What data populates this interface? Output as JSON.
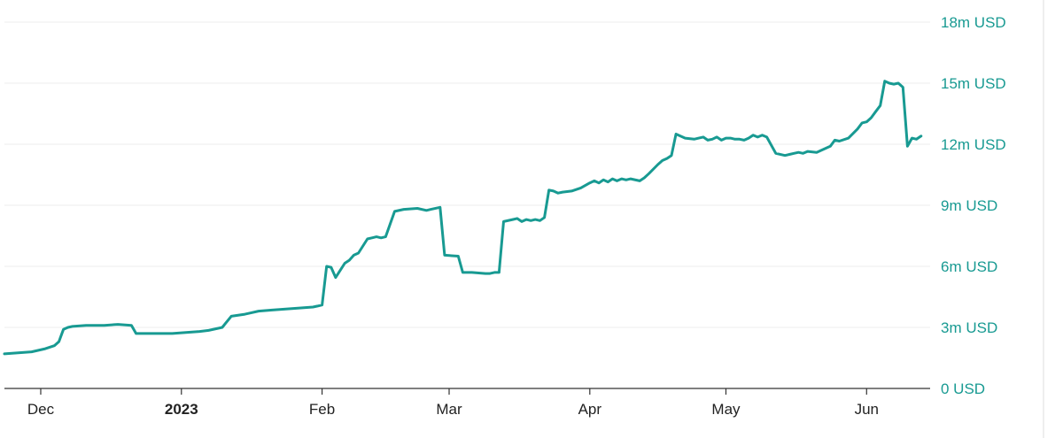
{
  "colors": {
    "line": "#189a92",
    "y_label": "#189a92"
  },
  "chart_data": {
    "type": "line",
    "title": "",
    "xlabel": "",
    "ylabel": "",
    "grid": true,
    "ylim": [
      0,
      18000000
    ],
    "xlim": [
      "2022-11-23",
      "2023-06-15"
    ],
    "y_ticks": [
      {
        "value": 0,
        "label": "0 USD"
      },
      {
        "value": 3000000,
        "label": "3m USD"
      },
      {
        "value": 6000000,
        "label": "6m USD"
      },
      {
        "value": 9000000,
        "label": "9m USD"
      },
      {
        "value": 12000000,
        "label": "12m USD"
      },
      {
        "value": 15000000,
        "label": "15m USD"
      },
      {
        "value": 18000000,
        "label": "18m USD"
      }
    ],
    "x_ticks": [
      {
        "date": "2022-12-01",
        "label": "Dec",
        "major": false
      },
      {
        "date": "2023-01-01",
        "label": "2023",
        "major": true
      },
      {
        "date": "2023-02-01",
        "label": "Feb",
        "major": false
      },
      {
        "date": "2023-03-01",
        "label": "Mar",
        "major": false
      },
      {
        "date": "2023-04-01",
        "label": "Apr",
        "major": false
      },
      {
        "date": "2023-05-01",
        "label": "May",
        "major": false
      },
      {
        "date": "2023-06-01",
        "label": "Jun",
        "major": false
      }
    ],
    "series": [
      {
        "x": [
          "2022-11-23",
          "2022-11-26",
          "2022-11-29",
          "2022-12-02",
          "2022-12-04",
          "2022-12-05",
          "2022-12-06",
          "2022-12-07",
          "2022-12-08",
          "2022-12-11",
          "2022-12-15",
          "2022-12-18",
          "2022-12-21",
          "2022-12-22",
          "2022-12-23",
          "2022-12-26",
          "2022-12-30",
          "2023-01-02",
          "2023-01-05",
          "2023-01-07",
          "2023-01-09",
          "2023-01-10",
          "2023-01-12",
          "2023-01-15",
          "2023-01-16",
          "2023-01-18",
          "2023-01-21",
          "2023-01-24",
          "2023-01-27",
          "2023-01-30",
          "2023-01-31",
          "2023-02-01",
          "2023-02-02",
          "2023-02-03",
          "2023-02-04",
          "2023-02-06",
          "2023-02-07",
          "2023-02-08",
          "2023-02-09",
          "2023-02-11",
          "2023-02-12",
          "2023-02-13",
          "2023-02-14",
          "2023-02-15",
          "2023-02-17",
          "2023-02-19",
          "2023-02-22",
          "2023-02-24",
          "2023-02-25",
          "2023-02-27",
          "2023-02-28",
          "2023-03-03",
          "2023-03-04",
          "2023-03-06",
          "2023-03-09",
          "2023-03-10",
          "2023-03-11",
          "2023-03-12",
          "2023-03-13",
          "2023-03-15",
          "2023-03-16",
          "2023-03-17",
          "2023-03-18",
          "2023-03-19",
          "2023-03-20",
          "2023-03-21",
          "2023-03-22",
          "2023-03-23",
          "2023-03-24",
          "2023-03-25",
          "2023-03-26",
          "2023-03-28",
          "2023-03-30",
          "2023-04-01",
          "2023-04-02",
          "2023-04-03",
          "2023-04-04",
          "2023-04-05",
          "2023-04-06",
          "2023-04-07",
          "2023-04-08",
          "2023-04-09",
          "2023-04-10",
          "2023-04-12",
          "2023-04-13",
          "2023-04-14",
          "2023-04-16",
          "2023-04-17",
          "2023-04-18",
          "2023-04-19",
          "2023-04-20",
          "2023-04-22",
          "2023-04-24",
          "2023-04-25",
          "2023-04-26",
          "2023-04-27",
          "2023-04-28",
          "2023-04-29",
          "2023-04-30",
          "2023-05-01",
          "2023-05-02",
          "2023-05-03",
          "2023-05-04",
          "2023-05-05",
          "2023-05-06",
          "2023-05-07",
          "2023-05-08",
          "2023-05-09",
          "2023-05-10",
          "2023-05-12",
          "2023-05-14",
          "2023-05-15",
          "2023-05-16",
          "2023-05-17",
          "2023-05-18",
          "2023-05-19",
          "2023-05-21",
          "2023-05-22",
          "2023-05-24",
          "2023-05-25",
          "2023-05-26",
          "2023-05-28",
          "2023-05-30",
          "2023-05-31",
          "2023-06-01",
          "2023-06-02",
          "2023-06-03",
          "2023-06-04",
          "2023-06-05",
          "2023-06-06",
          "2023-06-07",
          "2023-06-08",
          "2023-06-09",
          "2023-06-10",
          "2023-06-11",
          "2023-06-12",
          "2023-06-13"
        ],
        "y": [
          1700000,
          1750000,
          1800000,
          1950000,
          2100000,
          2300000,
          2900000,
          3000000,
          3050000,
          3100000,
          3100000,
          3150000,
          3100000,
          2700000,
          2700000,
          2700000,
          2700000,
          2750000,
          2800000,
          2850000,
          2950000,
          3000000,
          3550000,
          3650000,
          3700000,
          3800000,
          3850000,
          3900000,
          3950000,
          4000000,
          4050000,
          4100000,
          6000000,
          5950000,
          5450000,
          6150000,
          6300000,
          6550000,
          6650000,
          7350000,
          7400000,
          7450000,
          7400000,
          7450000,
          8700000,
          8800000,
          8850000,
          8750000,
          8800000,
          8900000,
          6550000,
          6500000,
          5700000,
          5700000,
          5650000,
          5650000,
          5700000,
          5700000,
          8200000,
          8300000,
          8350000,
          8200000,
          8300000,
          8250000,
          8300000,
          8250000,
          8400000,
          9750000,
          9700000,
          9600000,
          9650000,
          9700000,
          9850000,
          10100000,
          10200000,
          10100000,
          10250000,
          10150000,
          10300000,
          10200000,
          10300000,
          10250000,
          10300000,
          10200000,
          10350000,
          10550000,
          11000000,
          11200000,
          11300000,
          11450000,
          12500000,
          12300000,
          12250000,
          12300000,
          12350000,
          12200000,
          12250000,
          12350000,
          12200000,
          12300000,
          12300000,
          12250000,
          12250000,
          12200000,
          12300000,
          12450000,
          12350000,
          12450000,
          12350000,
          11550000,
          11450000,
          11500000,
          11550000,
          11600000,
          11550000,
          11650000,
          11600000,
          11700000,
          11900000,
          12200000,
          12150000,
          12300000,
          12750000,
          13050000,
          13100000,
          13300000,
          13600000,
          13900000,
          15100000,
          15000000,
          14950000,
          15000000,
          14800000,
          11900000,
          12300000,
          12250000,
          12400000
        ]
      }
    ]
  }
}
